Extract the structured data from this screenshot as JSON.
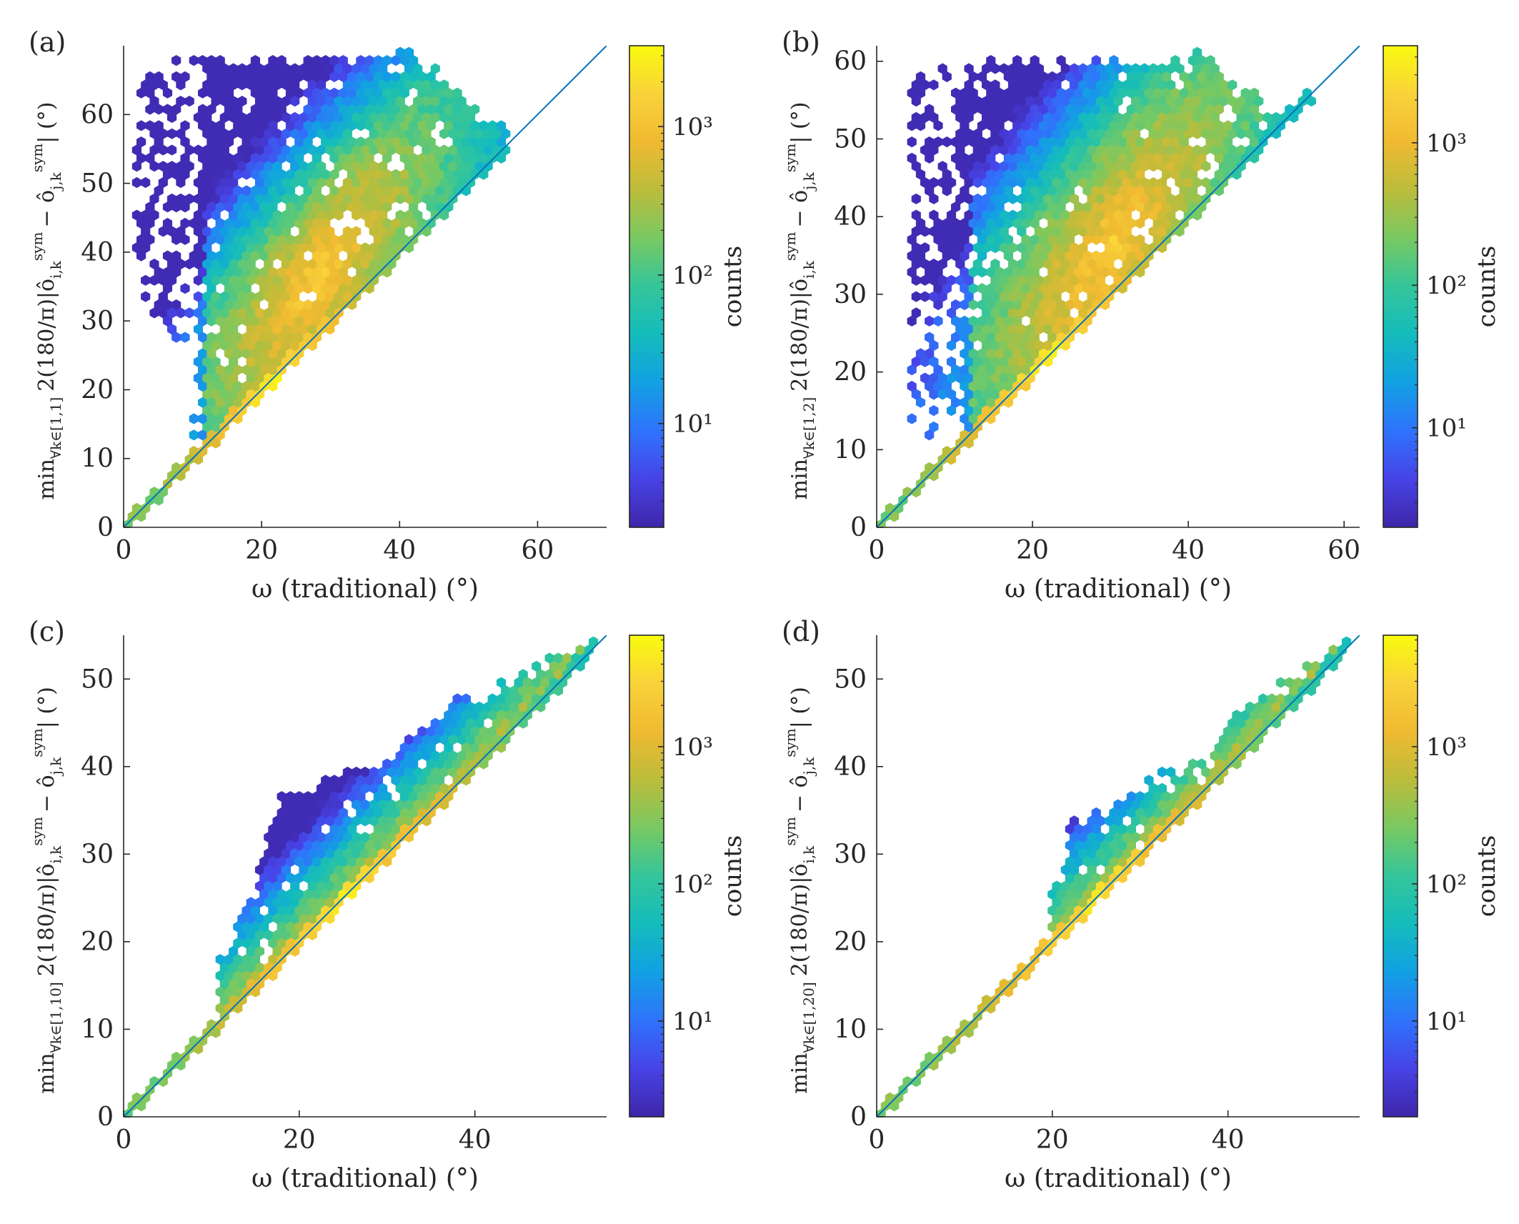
{
  "figure": {
    "colormap_stops": [
      "#3e26a8",
      "#4743e6",
      "#2f73fb",
      "#12a0e3",
      "#14bcbc",
      "#34c59a",
      "#78c962",
      "#bbbc3b",
      "#f0ba31",
      "#f9d23a",
      "#f9fb0e"
    ],
    "diag_color": "#0072BD",
    "axis_color": "#262626"
  },
  "chart_data": [
    {
      "type": "heatmap",
      "panel_label": "(a)",
      "xlabel": "ω (traditional) (°)",
      "ylabel": "min ∀k∈[1,1] 2(180/π)|ô_{i,k}^{sym} − ô_{j,k}^{sym}| (°)",
      "ylabel_main": "2(180/π)|ô",
      "ylabel_rest": "− ô",
      "ylabel_sub": "∀k∈[1,1]",
      "xlim": [
        0,
        70
      ],
      "ylim": [
        0,
        70
      ],
      "xticks": [
        0,
        20,
        40,
        60
      ],
      "yticks": [
        0,
        10,
        20,
        30,
        40,
        50,
        60
      ],
      "colorbar": {
        "label": "counts",
        "scale": "log",
        "range": [
          2,
          3500
        ],
        "ticks": [
          10,
          100,
          1000
        ],
        "tick_labels": [
          "10¹",
          "10²",
          "10³"
        ]
      },
      "reference_line": {
        "x": [
          0,
          70
        ],
        "y": [
          0,
          70
        ]
      },
      "hexbin_shape": {
        "mode": "cloud",
        "ymax_peak": 69,
        "spread": 0.62,
        "peak_x": 28,
        "core_y_offset": 8,
        "max_x": 56,
        "min_x": 1,
        "left_x": 1.5,
        "left_min_y": 25
      }
    },
    {
      "type": "heatmap",
      "panel_label": "(b)",
      "xlabel": "ω (traditional) (°)",
      "ylabel": "min ∀k∈[1,2] 2(180/π)|ô_{i,k}^{sym} − ô_{j,k}^{sym}| (°)",
      "ylabel_main": "2(180/π)|ô",
      "ylabel_rest": "− ô",
      "ylabel_sub": "∀k∈[1,2]",
      "xlim": [
        0,
        62
      ],
      "ylim": [
        0,
        62
      ],
      "xticks": [
        0,
        20,
        40,
        60
      ],
      "yticks": [
        0,
        10,
        20,
        30,
        40,
        50,
        60
      ],
      "colorbar": {
        "label": "counts",
        "scale": "log",
        "range": [
          2,
          4800
        ],
        "ticks": [
          10,
          100,
          1000
        ],
        "tick_labels": [
          "10¹",
          "10²",
          "10³"
        ]
      },
      "reference_line": {
        "x": [
          0,
          62
        ],
        "y": [
          0,
          62
        ]
      },
      "hexbin_shape": {
        "mode": "cloud",
        "ymax_peak": 61,
        "spread": 0.62,
        "peak_x": 30,
        "core_y_offset": 6,
        "max_x": 56,
        "min_x": 1,
        "left_x": 4,
        "left_min_y": 10
      }
    },
    {
      "type": "heatmap",
      "panel_label": "(c)",
      "xlabel": "ω (traditional) (°)",
      "ylabel": "min ∀k∈[1,10] 2(180/π)|ô_{i,k}^{sym} − ô_{j,k}^{sym}| (°)",
      "ylabel_main": "2(180/π)|ô",
      "ylabel_rest": "− ô",
      "ylabel_sub": "∀k∈[1,10]",
      "xlim": [
        0,
        55
      ],
      "ylim": [
        0,
        55
      ],
      "xticks": [
        0,
        20,
        40
      ],
      "yticks": [
        0,
        10,
        20,
        30,
        40,
        50
      ],
      "colorbar": {
        "label": "counts",
        "scale": "log",
        "range": [
          2,
          6500
        ],
        "ticks": [
          10,
          100,
          1000
        ],
        "tick_labels": [
          "10¹",
          "10²",
          "10³"
        ]
      },
      "reference_line": {
        "x": [
          0,
          55
        ],
        "y": [
          0,
          55
        ]
      },
      "hexbin_shape": {
        "mode": "band",
        "start_x": 12,
        "max_x": 54,
        "band_top": [
          [
            12,
            18
          ],
          [
            18,
            36
          ],
          [
            24,
            38
          ],
          [
            30,
            40
          ],
          [
            38,
            47
          ],
          [
            42,
            48
          ],
          [
            54,
            54
          ]
        ]
      }
    },
    {
      "type": "heatmap",
      "panel_label": "(d)",
      "xlabel": "ω (traditional) (°)",
      "ylabel": "min ∀k∈[1,20] 2(180/π)|ô_{i,k}^{sym} − ô_{j,k}^{sym}| (°)",
      "ylabel_main": "2(180/π)|ô",
      "ylabel_rest": "− ô",
      "ylabel_sub": "∀k∈[1,20]",
      "xlim": [
        0,
        55
      ],
      "ylim": [
        0,
        55
      ],
      "xticks": [
        0,
        20,
        40
      ],
      "yticks": [
        0,
        10,
        20,
        30,
        40,
        50
      ],
      "colorbar": {
        "label": "counts",
        "scale": "log",
        "range": [
          2,
          6500
        ],
        "ticks": [
          10,
          100,
          1000
        ],
        "tick_labels": [
          "10¹",
          "10²",
          "10³"
        ]
      },
      "reference_line": {
        "x": [
          0,
          55
        ],
        "y": [
          0,
          55
        ]
      },
      "hexbin_shape": {
        "mode": "band",
        "start_x": 21,
        "max_x": 54,
        "band_top": [
          [
            21,
            25
          ],
          [
            22,
            33
          ],
          [
            26,
            34
          ],
          [
            30,
            37
          ],
          [
            36,
            40
          ],
          [
            42,
            46
          ],
          [
            54,
            54
          ]
        ]
      }
    }
  ]
}
